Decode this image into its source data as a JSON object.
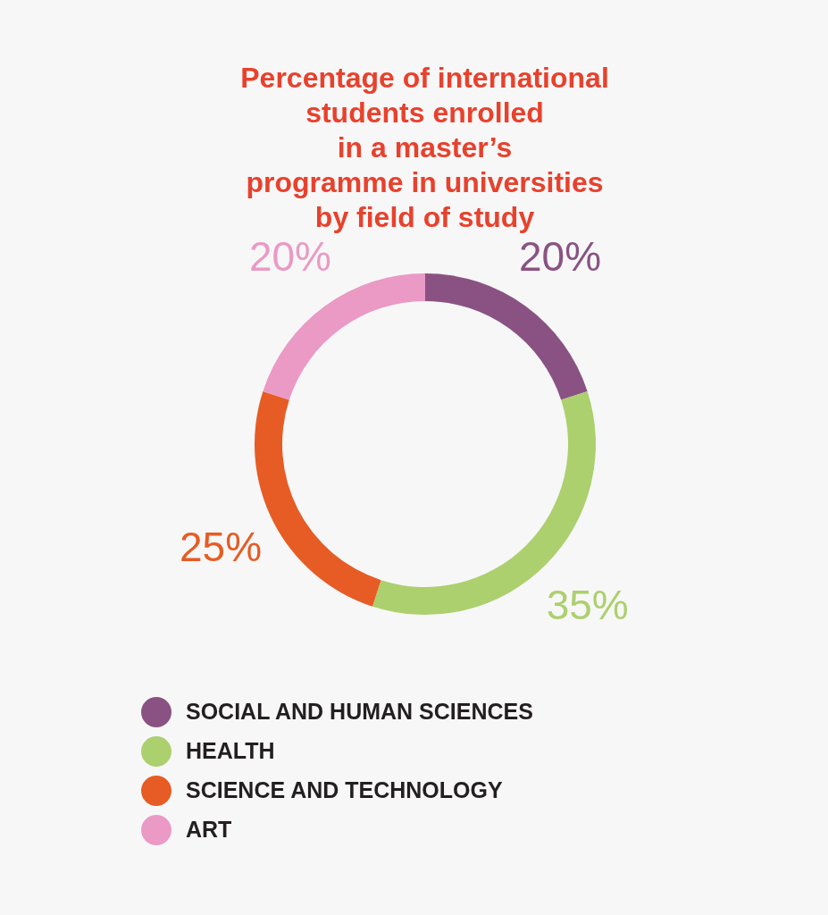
{
  "chart_data": {
    "type": "donut",
    "title": "Percentage of international\nstudents enrolled\nin a master’s\nprogramme in universities\nby field of study",
    "categories": [
      "SOCIAL AND HUMAN SCIENCES",
      "HEALTH",
      "SCIENCE AND TECHNOLOGY",
      "ART"
    ],
    "values": [
      20,
      35,
      25,
      20
    ],
    "colors": [
      "#8a5283",
      "#acd06d",
      "#e65c24",
      "#ea9ac4"
    ],
    "value_labels": [
      "20%",
      "35%",
      "25%",
      "20%"
    ],
    "legend": "bottom left"
  }
}
